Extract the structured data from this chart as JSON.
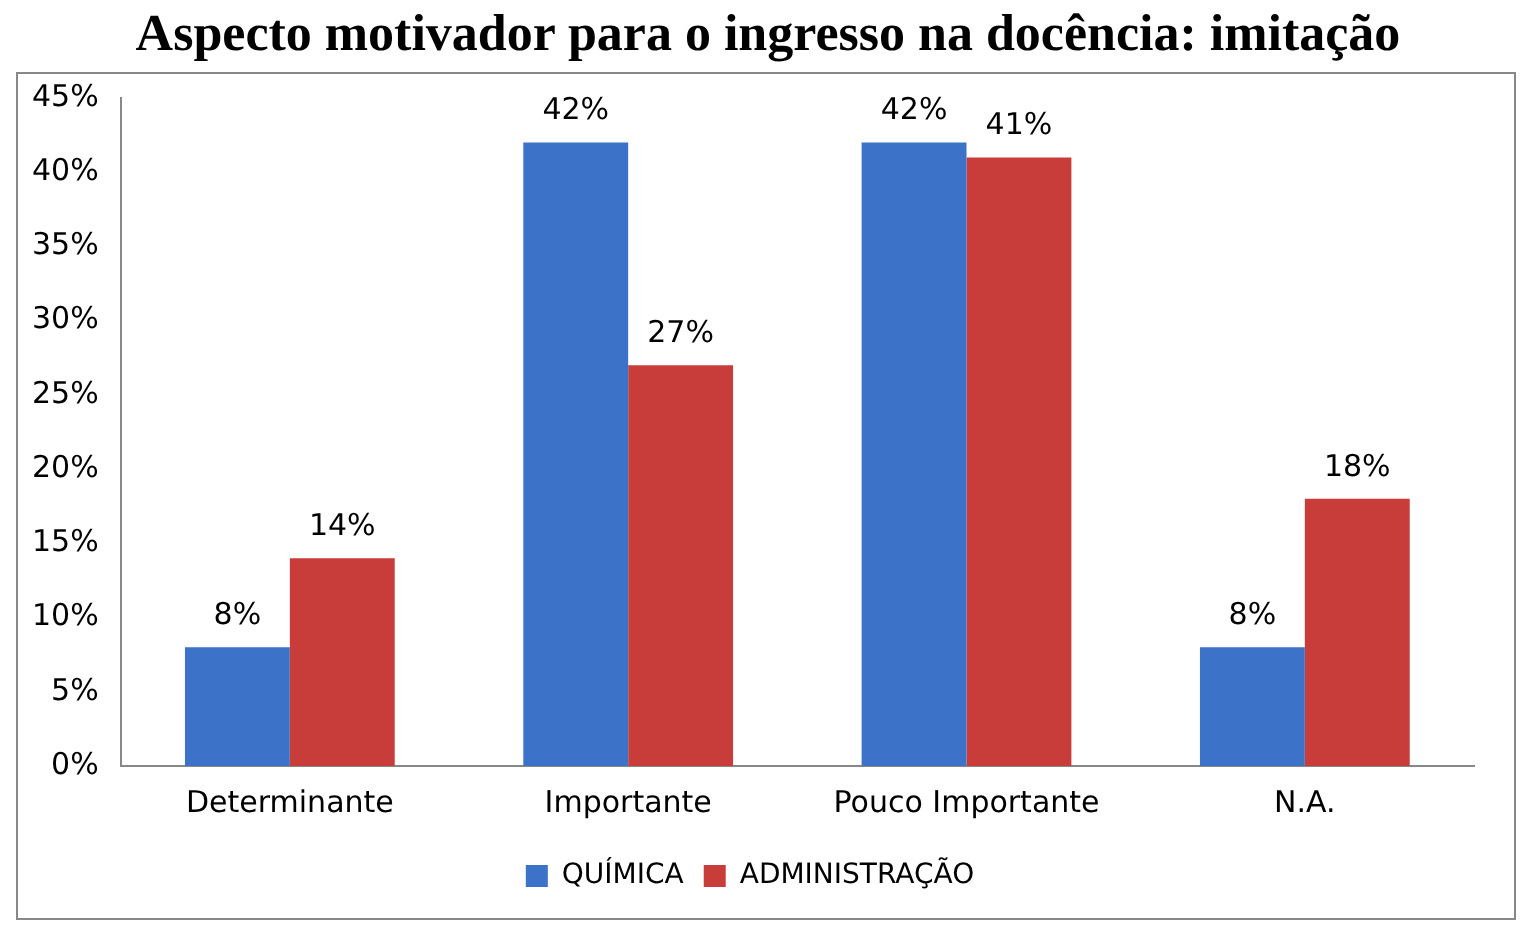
{
  "chart_data": {
    "type": "bar",
    "title": "Aspecto motivador para o ingresso na docência: imitação",
    "categories": [
      "Determinante",
      "Importante",
      "Pouco Importante",
      "N.A."
    ],
    "series": [
      {
        "name": "QUÍMICA",
        "color": "#3c72c8",
        "values": [
          8,
          42,
          42,
          8
        ],
        "value_labels": [
          "8%",
          "42%",
          "42%",
          "8%"
        ]
      },
      {
        "name": "ADMINISTRAÇÃO",
        "color": "#c83c3a",
        "values": [
          14,
          27,
          41,
          18
        ],
        "value_labels": [
          "14%",
          "27%",
          "41%",
          "18%"
        ]
      }
    ],
    "ylim": [
      0,
      45
    ],
    "yticks": [
      {
        "value": 0,
        "label": "0%"
      },
      {
        "value": 5,
        "label": "5%"
      },
      {
        "value": 10,
        "label": "10%"
      },
      {
        "value": 15,
        "label": "15%"
      },
      {
        "value": 20,
        "label": "20%"
      },
      {
        "value": 25,
        "label": "25%"
      },
      {
        "value": 30,
        "label": "30%"
      },
      {
        "value": 35,
        "label": "35%"
      },
      {
        "value": 40,
        "label": "40%"
      },
      {
        "value": 45,
        "label": "45%"
      }
    ],
    "grid": false,
    "legend": "bottom"
  }
}
